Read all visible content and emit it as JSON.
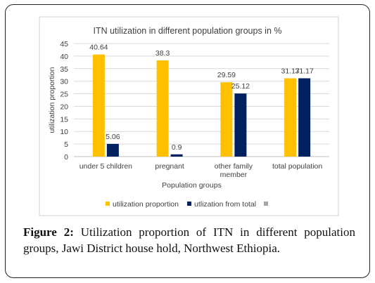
{
  "caption": {
    "label": "Figure 2:",
    "text": "Utilization proportion of ITN in different population groups, Jawi District house hold, Northwest Ethiopia."
  },
  "colors": {
    "series1": "#FFC000",
    "series2": "#002060",
    "series3": "#A5A5A5",
    "grid": "#d9d9d9",
    "text": "#404040"
  },
  "chart_data": {
    "type": "bar",
    "title": "ITN utilization in different population groups in %",
    "xlabel": "Population groups",
    "ylabel": "utilization proportion",
    "ylim": [
      0,
      45
    ],
    "yticks": [
      0,
      5,
      10,
      15,
      20,
      25,
      30,
      35,
      40,
      45
    ],
    "grid": true,
    "legend_position": "bottom",
    "categories": [
      "under 5 children",
      "pregnant",
      "other family member",
      "total population"
    ],
    "series": [
      {
        "name": "utilization proportion",
        "values": [
          40.64,
          38.3,
          29.59,
          31.17
        ],
        "labels": [
          "40.64",
          "38.3",
          "29.59",
          "31.17"
        ]
      },
      {
        "name": "utlization from total",
        "values": [
          5.06,
          0.9,
          25.12,
          31.17
        ],
        "labels": [
          "5.06",
          "0.9",
          "25.12",
          "31.17"
        ]
      },
      {
        "name": "",
        "values": [
          null,
          null,
          null,
          null
        ],
        "labels": [
          "",
          "",
          "",
          ""
        ]
      }
    ]
  }
}
